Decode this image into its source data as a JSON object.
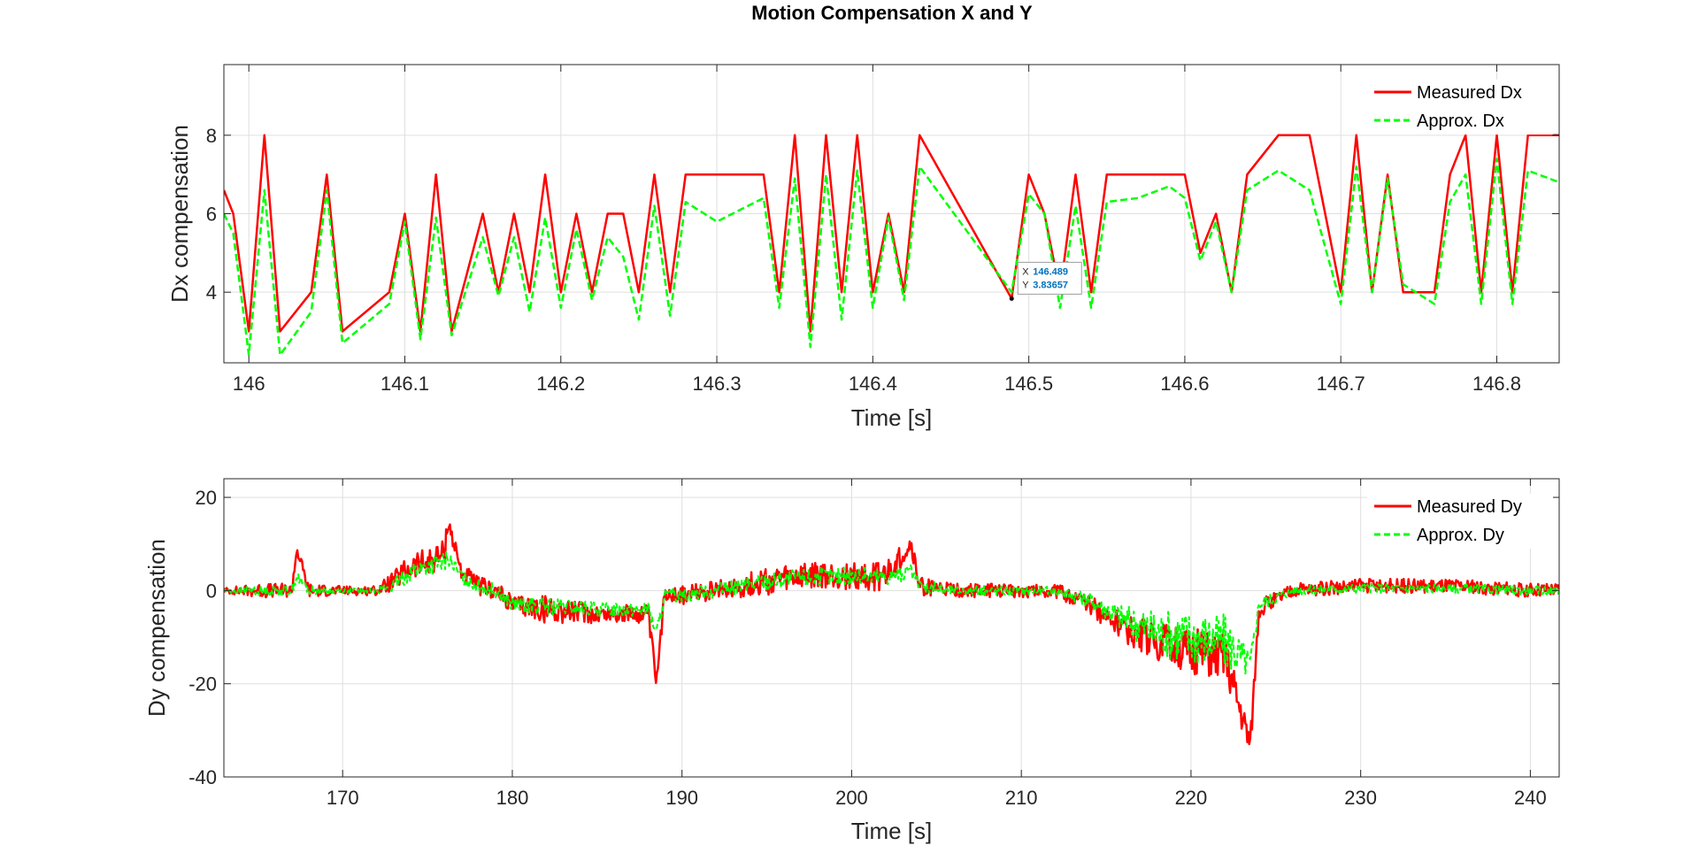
{
  "title": "Motion Compensation X and Y",
  "colors": {
    "measured": "#ff0000",
    "approx": "#00ff00",
    "grid": "#dfdfdf",
    "axes": "#262626",
    "datatip_value": "#0072bd"
  },
  "chart_data": [
    {
      "type": "line",
      "ylabel": "Dx compensation",
      "xlabel": "Time [s]",
      "xlim": [
        145.984,
        146.84
      ],
      "ylim": [
        2.2,
        9.8
      ],
      "xticks": [
        146,
        146.1,
        146.2,
        146.3,
        146.4,
        146.5,
        146.6,
        146.7,
        146.8
      ],
      "xtick_labels": [
        "146",
        "146.1",
        "146.2",
        "146.3",
        "146.4",
        "146.5",
        "146.6",
        "146.7",
        "146.8"
      ],
      "yticks": [
        4,
        6,
        8
      ],
      "ytick_labels": [
        "4",
        "6",
        "8"
      ],
      "grid": true,
      "legend_position": "top-right",
      "series": [
        {
          "name": "Measured Dx",
          "color": "#ff0000",
          "style": "solid",
          "x": [
            145.984,
            145.99,
            146.0,
            146.01,
            146.02,
            146.04,
            146.05,
            146.06,
            146.09,
            146.1,
            146.11,
            146.12,
            146.13,
            146.15,
            146.16,
            146.17,
            146.18,
            146.19,
            146.2,
            146.21,
            146.22,
            146.23,
            146.24,
            146.25,
            146.26,
            146.27,
            146.28,
            146.33,
            146.34,
            146.35,
            146.36,
            146.37,
            146.38,
            146.39,
            146.4,
            146.41,
            146.42,
            146.43,
            146.489,
            146.5,
            146.51,
            146.52,
            146.53,
            146.54,
            146.55,
            146.6,
            146.61,
            146.62,
            146.63,
            146.64,
            146.66,
            146.68,
            146.7,
            146.71,
            146.72,
            146.73,
            146.74,
            146.76,
            146.77,
            146.78,
            146.79,
            146.8,
            146.81,
            146.82,
            146.84
          ],
          "y": [
            6.6,
            6,
            3,
            8,
            3,
            4,
            7,
            3,
            4,
            6,
            3,
            7,
            3,
            6,
            4,
            6,
            4,
            7,
            4,
            6,
            4,
            6,
            6,
            4,
            7,
            4,
            7,
            7,
            4,
            8,
            3,
            8,
            4,
            8,
            4,
            6,
            4,
            8,
            3.83657,
            7,
            6,
            4,
            7,
            4,
            7,
            7,
            5,
            6,
            4,
            7,
            8,
            8,
            4,
            8,
            4,
            7,
            4,
            4,
            7,
            8,
            4,
            8,
            4,
            8,
            8
          ]
        },
        {
          "name": "Approx. Dx",
          "color": "#00ff00",
          "style": "dashed",
          "x": [
            145.984,
            145.99,
            146.0,
            146.01,
            146.02,
            146.04,
            146.05,
            146.06,
            146.09,
            146.1,
            146.11,
            146.12,
            146.13,
            146.15,
            146.16,
            146.17,
            146.18,
            146.19,
            146.2,
            146.21,
            146.22,
            146.23,
            146.24,
            146.25,
            146.26,
            146.27,
            146.28,
            146.3,
            146.33,
            146.34,
            146.35,
            146.36,
            146.37,
            146.38,
            146.39,
            146.4,
            146.41,
            146.42,
            146.43,
            146.489,
            146.5,
            146.51,
            146.52,
            146.53,
            146.54,
            146.55,
            146.57,
            146.59,
            146.6,
            146.61,
            146.62,
            146.63,
            146.64,
            146.66,
            146.68,
            146.7,
            146.71,
            146.72,
            146.73,
            146.74,
            146.76,
            146.77,
            146.78,
            146.79,
            146.8,
            146.81,
            146.82,
            146.84
          ],
          "y": [
            6.0,
            5.5,
            2.4,
            6.6,
            2.4,
            3.5,
            6.6,
            2.7,
            3.7,
            5.8,
            2.8,
            5.9,
            2.9,
            5.4,
            3.9,
            5.4,
            3.5,
            5.9,
            3.6,
            5.6,
            3.8,
            5.4,
            4.9,
            3.3,
            6.2,
            3.4,
            6.3,
            5.8,
            6.4,
            3.6,
            6.9,
            2.6,
            7.0,
            3.3,
            7.1,
            3.6,
            5.9,
            3.8,
            7.2,
            4.0,
            6.5,
            6.0,
            3.6,
            6.2,
            3.6,
            6.3,
            6.4,
            6.7,
            6.4,
            4.8,
            5.8,
            4.0,
            6.6,
            7.1,
            6.6,
            3.7,
            7.2,
            4.0,
            6.9,
            4.2,
            3.7,
            6.3,
            7.0,
            3.7,
            7.4,
            3.7,
            7.1,
            6.8
          ]
        }
      ],
      "datatip": {
        "x_label": "X",
        "x_value": "146.489",
        "y_label": "Y",
        "y_value": "3.83657",
        "x": 146.489,
        "y": 3.83657
      }
    },
    {
      "type": "line",
      "ylabel": "Dy compensation",
      "xlabel": "Time [s]",
      "xlim": [
        163,
        241.7
      ],
      "ylim": [
        -40,
        24
      ],
      "xticks": [
        170,
        180,
        190,
        200,
        210,
        220,
        230,
        240
      ],
      "xtick_labels": [
        "170",
        "180",
        "190",
        "200",
        "210",
        "220",
        "230",
        "240"
      ],
      "yticks": [
        -40,
        -20,
        0,
        20
      ],
      "ytick_labels": [
        "-40",
        "-20",
        "0",
        "20"
      ],
      "grid": true,
      "legend_position": "top-right",
      "series": [
        {
          "name": "Measured Dy",
          "color": "#ff0000",
          "style": "solid",
          "x": [
            163,
            165,
            167,
            167.3,
            168,
            170,
            172,
            173,
            174,
            175,
            176,
            176.2,
            177,
            178,
            179,
            180,
            182,
            185,
            188,
            188.5,
            189,
            190,
            192,
            195,
            198,
            200,
            202,
            203.5,
            204,
            206,
            210,
            212,
            214,
            216,
            218,
            220,
            222,
            223.5,
            224,
            226,
            230,
            235,
            240,
            241.7
          ],
          "y": [
            0,
            0,
            0,
            9,
            0,
            0,
            0,
            2,
            5,
            6,
            8,
            15,
            4,
            1,
            0,
            -3,
            -4,
            -5,
            -5,
            -20,
            0,
            -1,
            0,
            2,
            3,
            3,
            3,
            10,
            1,
            0,
            0,
            0,
            -3,
            -8,
            -11,
            -13,
            -14,
            -33,
            -4,
            0,
            1,
            1,
            0,
            0
          ],
          "band": [
            0.6,
            1.5,
            1.5,
            1.5,
            1.5,
            1,
            1,
            2,
            3,
            3,
            3,
            2,
            2,
            2,
            2,
            2,
            3,
            2,
            2,
            2,
            2,
            2,
            2,
            3,
            3,
            3,
            3,
            2,
            2,
            1.5,
            1.5,
            1.5,
            2,
            3,
            4,
            5,
            5,
            3,
            2,
            1.5,
            1.5,
            1.5,
            1.5,
            1.5
          ]
        },
        {
          "name": "Approx. Dy",
          "color": "#00ff00",
          "style": "dashed",
          "x": [
            163,
            165,
            167,
            167.3,
            168,
            170,
            172,
            173,
            174,
            175,
            176,
            176.2,
            177,
            178,
            179,
            180,
            182,
            185,
            188,
            188.5,
            189,
            190,
            192,
            195,
            198,
            200,
            202,
            203.5,
            204,
            206,
            210,
            212,
            214,
            216,
            218,
            220,
            222,
            223.5,
            224,
            226,
            230,
            235,
            240,
            241.7
          ],
          "y": [
            0,
            0,
            0,
            3,
            0,
            0,
            0,
            1,
            4,
            5,
            6,
            7,
            3,
            1,
            0,
            -3,
            -3.5,
            -4,
            -4,
            -9,
            -1,
            -1,
            0,
            2,
            3,
            3,
            3,
            4,
            1,
            0,
            0,
            0,
            -2,
            -6,
            -9,
            -10,
            -11,
            -16,
            -3,
            0,
            0.5,
            0.5,
            0,
            0
          ],
          "band": [
            0.5,
            1,
            1,
            1,
            1,
            0.5,
            0.5,
            1.5,
            2,
            2,
            2,
            1.5,
            1.5,
            1.5,
            1.5,
            1.5,
            2,
            1.5,
            1.5,
            1.5,
            1.5,
            1.5,
            1.5,
            2,
            2,
            2,
            2,
            1.5,
            1.5,
            1,
            1,
            1,
            1.5,
            3,
            5,
            6,
            6,
            3,
            1.5,
            1,
            1,
            1,
            1,
            1
          ]
        }
      ]
    }
  ]
}
